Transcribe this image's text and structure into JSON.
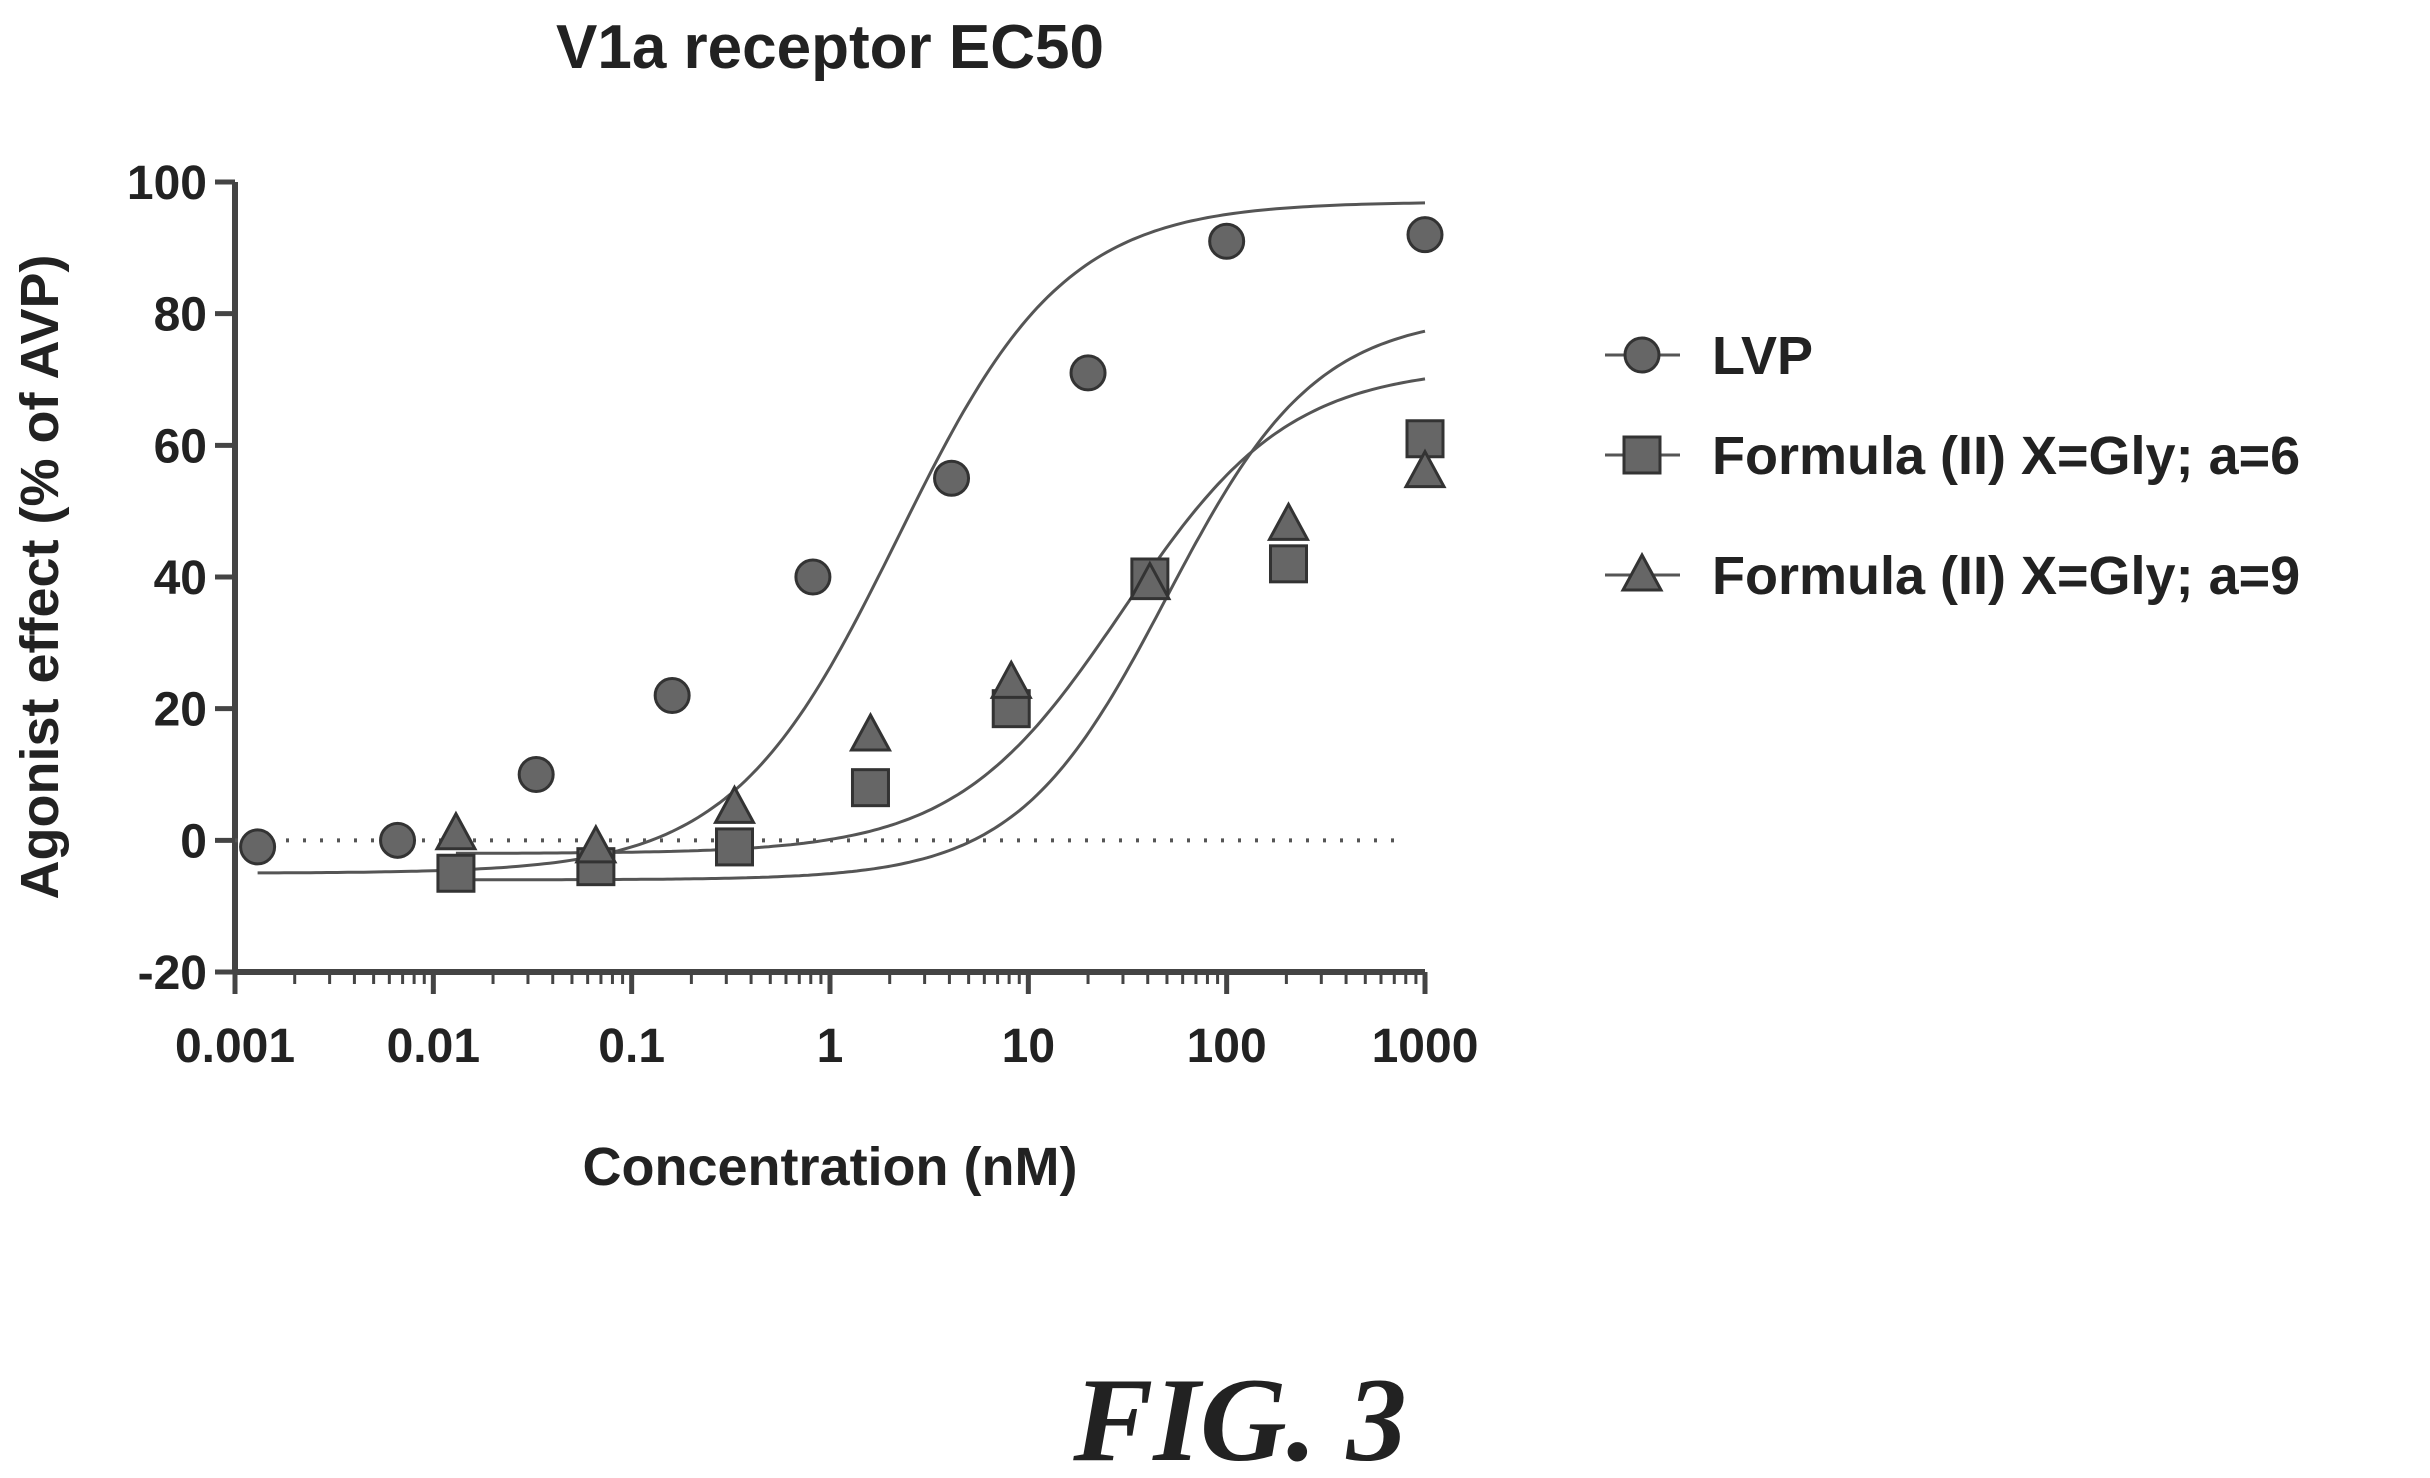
{
  "chart_data": {
    "type": "scatter",
    "title": "V1a receptor EC50",
    "xlabel": "Concentration (nM)",
    "ylabel": "Agonist effect (% of AVP)",
    "xscale": "log",
    "xlim": [
      0.001,
      1000
    ],
    "ylim": [
      -20,
      100
    ],
    "xticks": [
      0.001,
      0.01,
      0.1,
      1,
      10,
      100,
      1000
    ],
    "xtick_labels": [
      "0.001",
      "0.01",
      "0.1",
      "1",
      "10",
      "100",
      "1000"
    ],
    "yticks": [
      -20,
      0,
      20,
      40,
      60,
      80,
      100
    ],
    "ytick_labels": [
      "-20",
      "0",
      "20",
      "40",
      "60",
      "80",
      "100"
    ],
    "reference_line": {
      "y": 0,
      "style": "dotted"
    },
    "legend_position": "right",
    "grid": false,
    "series": [
      {
        "name": "LVP",
        "marker": "circle",
        "color": "#666666",
        "x": [
          0.0013,
          0.0066,
          0.033,
          0.16,
          0.82,
          4.1,
          20,
          100,
          1000
        ],
        "y": [
          -1,
          0,
          10,
          22,
          40,
          55,
          71,
          91,
          92
        ],
        "fit": {
          "bottom": -5,
          "top": 97,
          "ec50": 2.2,
          "hill": 0.45
        }
      },
      {
        "name": "Formula (II) X=Gly; a=6",
        "marker": "square",
        "color": "#666666",
        "x": [
          0.013,
          0.066,
          0.33,
          1.6,
          8.2,
          41,
          205,
          1000
        ],
        "y": [
          -5,
          -4,
          -1,
          8,
          20,
          40,
          42,
          61
        ],
        "fit": {
          "bottom": -6,
          "top": 80,
          "ec50": 50,
          "hill": 0.5
        }
      },
      {
        "name": "Formula (II) X=Gly; a=9",
        "marker": "triangle",
        "color": "#666666",
        "x": [
          0.013,
          0.066,
          0.33,
          1.6,
          8.2,
          41,
          205,
          1000
        ],
        "y": [
          1,
          -1,
          5,
          16,
          24,
          39,
          48,
          56
        ],
        "fit": {
          "bottom": -2,
          "top": 72,
          "ec50": 30,
          "hill": 0.45
        }
      }
    ]
  },
  "caption": "FIG. 3"
}
